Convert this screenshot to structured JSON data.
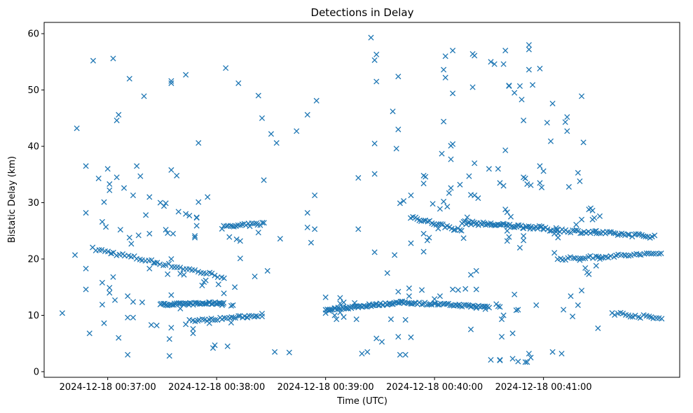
{
  "chart_data": {
    "type": "scatter",
    "title": "Detections in Delay",
    "xlabel": "Time (UTC)",
    "ylabel": "Bistatic Delay (km)",
    "marker": "x",
    "color": "#1f77b4",
    "x_unit": "seconds since 2024-12-18 00:36:00 UTC",
    "xlim": [
      25,
      375
    ],
    "ylim": [
      -1,
      62
    ],
    "x_ticks": [
      {
        "value": 60,
        "label": "2024-12-18 00:37:00"
      },
      {
        "value": 120,
        "label": "2024-12-18 00:38:00"
      },
      {
        "value": 180,
        "label": "2024-12-18 00:39:00"
      },
      {
        "value": 240,
        "label": "2024-12-18 00:40:00"
      },
      {
        "value": 300,
        "label": "2024-12-18 00:41:00"
      }
    ],
    "y_ticks": [
      0,
      10,
      20,
      30,
      40,
      50,
      60
    ],
    "tracks": [
      {
        "name": "track-a",
        "x0": 52,
        "x1": 124,
        "y0": 21.8,
        "y1": 16.8,
        "n": 46,
        "jitter": 0.3
      },
      {
        "name": "track-b",
        "x0": 89,
        "x1": 124,
        "y0": 11.9,
        "y1": 12.2,
        "n": 50,
        "jitter": 0.2
      },
      {
        "name": "track-c",
        "x0": 107,
        "x1": 143,
        "y0": 9.0,
        "y1": 10.0,
        "n": 30,
        "jitter": 0.2
      },
      {
        "name": "track-d",
        "x0": 123,
        "x1": 146,
        "y0": 25.6,
        "y1": 26.3,
        "n": 22,
        "jitter": 0.3
      },
      {
        "name": "track-e",
        "x0": 180,
        "x1": 222,
        "y0": 11.0,
        "y1": 12.3,
        "n": 55,
        "jitter": 0.2
      },
      {
        "name": "track-f",
        "x0": 222,
        "x1": 270,
        "y0": 12.3,
        "y1": 11.5,
        "n": 50,
        "jitter": 0.2
      },
      {
        "name": "track-g",
        "x0": 227,
        "x1": 255,
        "y0": 27.5,
        "y1": 25.0,
        "n": 25,
        "jitter": 0.3
      },
      {
        "name": "track-h",
        "x0": 255,
        "x1": 300,
        "y0": 26.5,
        "y1": 25.5,
        "n": 55,
        "jitter": 0.3
      },
      {
        "name": "track-i",
        "x0": 300,
        "x1": 361,
        "y0": 25.3,
        "y1": 24.0,
        "n": 55,
        "jitter": 0.3
      },
      {
        "name": "track-j",
        "x0": 308,
        "x1": 365,
        "y0": 20.0,
        "y1": 21.0,
        "n": 42,
        "jitter": 0.25
      },
      {
        "name": "track-k",
        "x0": 338,
        "x1": 365,
        "y0": 10.4,
        "y1": 9.4,
        "n": 20,
        "jitter": 0.3
      }
    ],
    "scatter_points": [
      [
        35,
        10.4
      ],
      [
        42,
        20.7
      ],
      [
        43,
        43.2
      ],
      [
        48,
        36.5
      ],
      [
        48,
        28.2
      ],
      [
        48,
        18.3
      ],
      [
        48,
        14.6
      ],
      [
        50,
        6.8
      ],
      [
        52,
        55.2
      ],
      [
        55,
        34.3
      ],
      [
        57,
        26.6
      ],
      [
        57,
        15.8
      ],
      [
        57,
        11.9
      ],
      [
        58,
        8.6
      ],
      [
        58,
        30.1
      ],
      [
        59,
        25.7
      ],
      [
        60,
        36.0
      ],
      [
        61,
        33.3
      ],
      [
        61,
        32.2
      ],
      [
        61,
        14.9
      ],
      [
        61,
        14.0
      ],
      [
        62,
        21.0
      ],
      [
        63,
        16.8
      ],
      [
        63,
        55.6
      ],
      [
        64,
        12.7
      ],
      [
        65,
        34.5
      ],
      [
        65,
        44.6
      ],
      [
        66,
        45.6
      ],
      [
        66,
        6.0
      ],
      [
        67,
        25.2
      ],
      [
        69,
        32.6
      ],
      [
        71,
        13.4
      ],
      [
        71,
        9.6
      ],
      [
        71,
        3.0
      ],
      [
        72,
        23.8
      ],
      [
        72,
        52.0
      ],
      [
        73,
        22.7
      ],
      [
        74,
        31.3
      ],
      [
        74,
        12.4
      ],
      [
        74,
        9.6
      ],
      [
        76,
        36.5
      ],
      [
        77,
        24.2
      ],
      [
        78,
        34.7
      ],
      [
        79,
        12.3
      ],
      [
        80,
        48.9
      ],
      [
        81,
        27.8
      ],
      [
        83,
        31.0
      ],
      [
        83,
        18.3
      ],
      [
        83,
        24.5
      ],
      [
        84,
        8.3
      ],
      [
        86,
        19.3
      ],
      [
        87,
        8.2
      ],
      [
        89,
        30.0
      ],
      [
        91,
        29.4
      ],
      [
        92,
        29.9
      ],
      [
        92,
        25.2
      ],
      [
        93,
        24.6
      ],
      [
        93,
        17.3
      ],
      [
        94,
        5.8
      ],
      [
        94,
        2.8
      ],
      [
        95,
        7.8
      ],
      [
        95,
        13.6
      ],
      [
        95,
        20.0
      ],
      [
        95,
        35.8
      ],
      [
        95,
        51.2
      ],
      [
        95,
        51.6
      ],
      [
        96,
        24.5
      ],
      [
        98,
        34.8
      ],
      [
        99,
        28.4
      ],
      [
        100,
        11.2
      ],
      [
        100,
        17.4
      ],
      [
        102,
        17.2
      ],
      [
        103,
        8.4
      ],
      [
        103,
        28.0
      ],
      [
        103,
        52.7
      ],
      [
        105,
        9.2
      ],
      [
        105,
        27.7
      ],
      [
        107,
        6.8
      ],
      [
        107,
        7.6
      ],
      [
        108,
        23.8
      ],
      [
        108,
        24.1
      ],
      [
        109,
        25.9
      ],
      [
        109,
        27.3
      ],
      [
        109,
        27.4
      ],
      [
        110,
        30.1
      ],
      [
        110,
        40.6
      ],
      [
        112,
        15.3
      ],
      [
        113,
        15.9
      ],
      [
        114,
        16.2
      ],
      [
        115,
        31.0
      ],
      [
        116,
        8.6
      ],
      [
        118,
        4.2
      ],
      [
        119,
        4.7
      ],
      [
        121,
        15.5
      ],
      [
        123,
        11.8
      ],
      [
        124,
        13.9
      ],
      [
        125,
        53.9
      ],
      [
        126,
        4.5
      ],
      [
        127,
        23.9
      ],
      [
        128,
        8.7
      ],
      [
        128,
        11.7
      ],
      [
        129,
        11.8
      ],
      [
        130,
        15.0
      ],
      [
        131,
        23.5
      ],
      [
        132,
        51.2
      ],
      [
        133,
        23.2
      ],
      [
        133,
        20.1
      ],
      [
        137,
        9.6
      ],
      [
        141,
        16.9
      ],
      [
        143,
        49.0
      ],
      [
        143,
        24.7
      ],
      [
        145,
        45.0
      ],
      [
        145,
        10.3
      ],
      [
        145,
        9.8
      ],
      [
        146,
        34.0
      ],
      [
        148,
        17.9
      ],
      [
        150,
        42.2
      ],
      [
        152,
        3.5
      ],
      [
        153,
        40.6
      ],
      [
        155,
        23.6
      ],
      [
        160,
        3.4
      ],
      [
        164,
        42.7
      ],
      [
        170,
        45.6
      ],
      [
        170,
        25.6
      ],
      [
        170,
        28.2
      ],
      [
        172,
        22.9
      ],
      [
        174,
        31.3
      ],
      [
        174,
        25.3
      ],
      [
        175,
        48.1
      ],
      [
        180,
        13.2
      ],
      [
        180,
        10.4
      ],
      [
        182,
        10.8
      ],
      [
        185,
        10.0
      ],
      [
        186,
        9.3
      ],
      [
        188,
        13.1
      ],
      [
        188,
        12.1
      ],
      [
        188,
        10.5
      ],
      [
        190,
        9.7
      ],
      [
        190,
        12.3
      ],
      [
        192,
        11.3
      ],
      [
        196,
        12.2
      ],
      [
        197,
        9.3
      ],
      [
        198,
        34.4
      ],
      [
        198,
        25.3
      ],
      [
        200,
        3.2
      ],
      [
        203,
        3.5
      ],
      [
        204,
        12.0
      ],
      [
        205,
        59.3
      ],
      [
        207,
        40.5
      ],
      [
        207,
        35.1
      ],
      [
        207,
        21.2
      ],
      [
        207,
        55.3
      ],
      [
        208,
        56.3
      ],
      [
        208,
        51.5
      ],
      [
        208,
        5.9
      ],
      [
        211,
        5.3
      ],
      [
        214,
        17.5
      ],
      [
        216,
        9.3
      ],
      [
        217,
        46.2
      ],
      [
        218,
        20.7
      ],
      [
        219,
        39.6
      ],
      [
        220,
        52.4
      ],
      [
        220,
        43.0
      ],
      [
        220,
        14.2
      ],
      [
        220,
        6.2
      ],
      [
        221,
        29.9
      ],
      [
        221,
        3.0
      ],
      [
        223,
        30.3
      ],
      [
        224,
        3.0
      ],
      [
        224,
        9.2
      ],
      [
        226,
        13.4
      ],
      [
        226,
        14.8
      ],
      [
        227,
        6.1
      ],
      [
        227,
        31.3
      ],
      [
        227,
        22.8
      ],
      [
        233,
        14.5
      ],
      [
        234,
        21.3
      ],
      [
        234,
        24.5
      ],
      [
        234,
        33.4
      ],
      [
        234,
        34.8
      ],
      [
        235,
        34.6
      ],
      [
        236,
        23.3
      ],
      [
        237,
        23.8
      ],
      [
        239,
        29.8
      ],
      [
        240,
        12.9
      ],
      [
        242,
        25.4
      ],
      [
        243,
        13.4
      ],
      [
        243,
        28.9
      ],
      [
        244,
        38.7
      ],
      [
        245,
        30.2
      ],
      [
        245,
        44.4
      ],
      [
        245,
        53.6
      ],
      [
        246,
        52.2
      ],
      [
        246,
        56.0
      ],
      [
        247,
        29.3
      ],
      [
        248,
        31.7
      ],
      [
        249,
        32.6
      ],
      [
        249,
        37.7
      ],
      [
        249,
        40.1
      ],
      [
        250,
        40.4
      ],
      [
        250,
        49.4
      ],
      [
        250,
        57.0
      ],
      [
        250,
        14.6
      ],
      [
        253,
        14.5
      ],
      [
        254,
        33.2
      ],
      [
        256,
        23.7
      ],
      [
        257,
        14.7
      ],
      [
        258,
        27.4
      ],
      [
        259,
        34.7
      ],
      [
        260,
        11.5
      ],
      [
        260,
        17.2
      ],
      [
        260,
        7.5
      ],
      [
        260,
        31.4
      ],
      [
        261,
        56.4
      ],
      [
        261,
        50.5
      ],
      [
        262,
        37.0
      ],
      [
        262,
        56.1
      ],
      [
        262,
        31.3
      ],
      [
        263,
        17.9
      ],
      [
        263,
        14.6
      ],
      [
        263,
        11.3
      ],
      [
        264,
        30.8
      ],
      [
        268,
        11.1
      ],
      [
        270,
        36.0
      ],
      [
        271,
        55.0
      ],
      [
        271,
        2.1
      ],
      [
        273,
        54.6
      ],
      [
        274,
        12.0
      ],
      [
        275,
        11.6
      ],
      [
        275,
        36.0
      ],
      [
        276,
        33.5
      ],
      [
        276,
        2.0
      ],
      [
        276,
        2.1
      ],
      [
        276,
        11.5
      ],
      [
        277,
        6.2
      ],
      [
        277,
        9.3
      ],
      [
        278,
        54.6
      ],
      [
        278,
        10.0
      ],
      [
        278,
        33.0
      ],
      [
        279,
        57.0
      ],
      [
        279,
        39.3
      ],
      [
        279,
        28.8
      ],
      [
        280,
        28.3
      ],
      [
        280,
        25.0
      ],
      [
        280,
        23.2
      ],
      [
        281,
        50.8
      ],
      [
        281,
        50.7
      ],
      [
        281,
        23.9
      ],
      [
        282,
        27.5
      ],
      [
        283,
        6.8
      ],
      [
        283,
        2.3
      ],
      [
        284,
        13.7
      ],
      [
        284,
        49.5
      ],
      [
        285,
        10.9
      ],
      [
        286,
        11.0
      ],
      [
        286,
        1.8
      ],
      [
        287,
        50.7
      ],
      [
        287,
        22.0
      ],
      [
        288,
        48.3
      ],
      [
        289,
        24.1
      ],
      [
        289,
        34.5
      ],
      [
        289,
        44.6
      ],
      [
        289,
        23.3
      ],
      [
        290,
        34.3
      ],
      [
        290,
        1.7
      ],
      [
        291,
        1.7
      ],
      [
        291,
        33.3
      ],
      [
        292,
        57.2
      ],
      [
        292,
        58.0
      ],
      [
        292,
        3.2
      ],
      [
        292,
        53.6
      ],
      [
        293,
        2.5
      ],
      [
        293,
        33.1
      ],
      [
        294,
        50.9
      ],
      [
        296,
        11.8
      ],
      [
        298,
        36.5
      ],
      [
        298,
        53.8
      ],
      [
        298,
        33.5
      ],
      [
        299,
        32.7
      ],
      [
        300,
        35.6
      ],
      [
        302,
        44.2
      ],
      [
        304,
        40.9
      ],
      [
        305,
        47.6
      ],
      [
        305,
        3.5
      ],
      [
        306,
        21.1
      ],
      [
        306,
        24.5
      ],
      [
        307,
        25.5
      ],
      [
        308,
        23.8
      ],
      [
        308,
        24.5
      ],
      [
        310,
        3.2
      ],
      [
        311,
        11.0
      ],
      [
        312,
        44.3
      ],
      [
        313,
        45.2
      ],
      [
        313,
        42.7
      ],
      [
        314,
        32.8
      ],
      [
        315,
        13.4
      ],
      [
        316,
        9.8
      ],
      [
        318,
        26.1
      ],
      [
        319,
        11.8
      ],
      [
        319,
        35.3
      ],
      [
        320,
        19.8
      ],
      [
        320,
        33.8
      ],
      [
        321,
        27.0
      ],
      [
        321,
        14.4
      ],
      [
        321,
        48.9
      ],
      [
        322,
        40.7
      ],
      [
        323,
        18.4
      ],
      [
        324,
        17.6
      ],
      [
        325,
        17.3
      ],
      [
        325,
        28.8
      ],
      [
        326,
        29.0
      ],
      [
        327,
        27.0
      ],
      [
        327,
        28.6
      ],
      [
        328,
        27.3
      ],
      [
        329,
        25.0
      ],
      [
        329,
        18.8
      ],
      [
        330,
        20.3
      ],
      [
        330,
        7.7
      ],
      [
        331,
        20.0
      ],
      [
        331,
        27.6
      ]
    ]
  }
}
